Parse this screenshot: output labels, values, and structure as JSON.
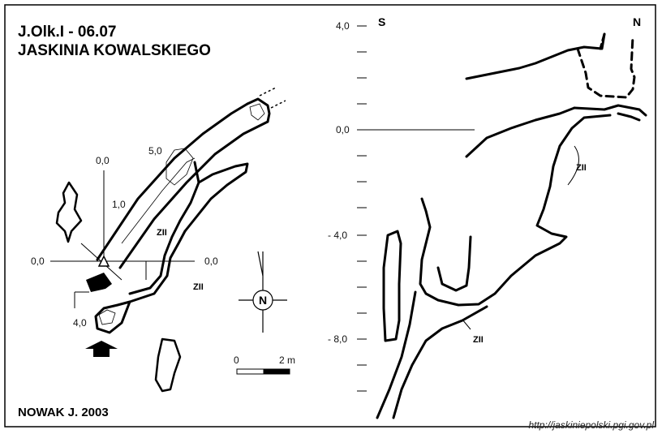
{
  "header": {
    "code": "J.Olk.I - 06.07",
    "name": "JASKINIA KOWALSKIEGO"
  },
  "author": "NOWAK J.  2003",
  "source_url": "http://jaskiniepolski.pgi.gov.pl",
  "plan": {
    "labels": {
      "ref_vertical_top": "0,0",
      "ref_left": "0,0",
      "ref_right": "0,0",
      "point_1": "1,0",
      "point_5": "5,0",
      "point_4": "4,0",
      "zii_upper": "ZII",
      "zii_lower": "ZII"
    },
    "north_letter": "N",
    "scale": {
      "start": "0",
      "end": "2 m"
    }
  },
  "section": {
    "left_label": "S",
    "right_label": "N",
    "depth_ticks": [
      "4,0",
      "0,0",
      "- 4,0",
      "- 8,0"
    ],
    "zii_upper": "ZII",
    "zii_lower": "ZII"
  },
  "colors": {
    "ink": "#000000",
    "background": "#ffffff"
  }
}
